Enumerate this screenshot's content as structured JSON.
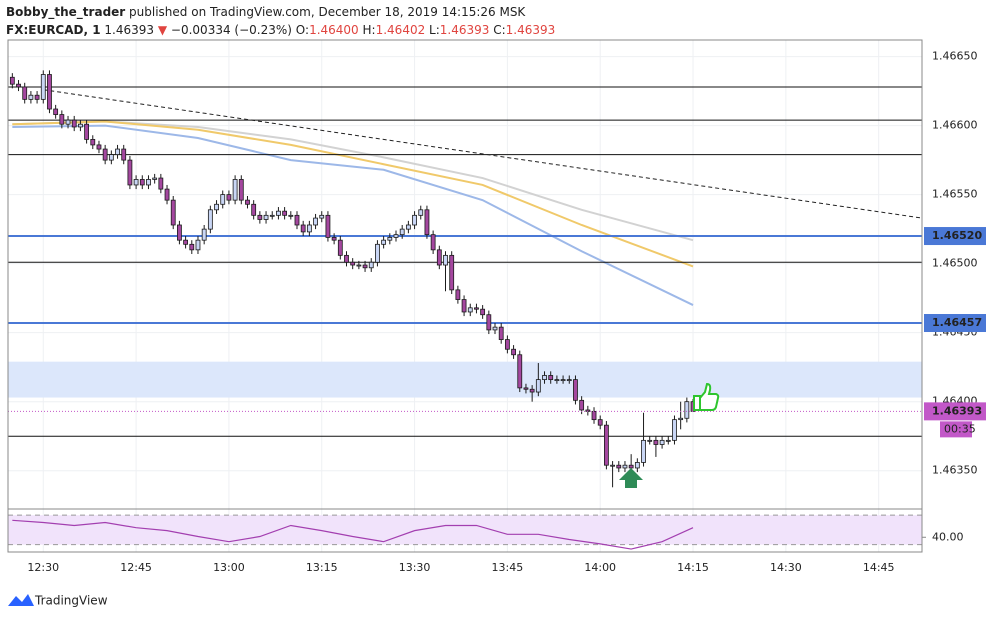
{
  "header": {
    "author": "Bobby_the_trader",
    "published": "published on TradingView.com, December 18, 2019 14:15:26 MSK",
    "symbol": "FX:EURCAD, 1",
    "last": "1.46393",
    "arrow": "▼",
    "change": "−0.00334 (−0.23%)",
    "o_label": "O:",
    "o": "1.46400",
    "h_label": "H:",
    "h": "1.46402",
    "l_label": "L:",
    "l": "1.46393",
    "c_label": "C:",
    "c": "1.46393"
  },
  "footer": {
    "brand": "TradingView"
  },
  "chart_data": {
    "type": "candlestick",
    "up_color": "#c9d6f5",
    "down_color": "#a4479f",
    "outline": "#1b1b1b",
    "grid": true,
    "xlim": [
      744.3,
      892
    ],
    "ylim": [
      1.46323,
      1.46662
    ],
    "xticks": [
      {
        "value": 750,
        "label": "12:30"
      },
      {
        "value": 765,
        "label": "12:45"
      },
      {
        "value": 780,
        "label": "13:00"
      },
      {
        "value": 795,
        "label": "13:15"
      },
      {
        "value": 810,
        "label": "13:30"
      },
      {
        "value": 825,
        "label": "13:45"
      },
      {
        "value": 840,
        "label": "14:00"
      },
      {
        "value": 855,
        "label": "14:15"
      },
      {
        "value": 870,
        "label": "14:30"
      },
      {
        "value": 885,
        "label": "14:45"
      }
    ],
    "yticks": [
      {
        "value": 1.4665,
        "label": "1.46650"
      },
      {
        "value": 1.466,
        "label": "1.46600"
      },
      {
        "value": 1.4655,
        "label": "1.46550"
      },
      {
        "value": 1.465,
        "label": "1.46500"
      },
      {
        "value": 1.4645,
        "label": "1.46450"
      },
      {
        "value": 1.464,
        "label": "1.46400"
      },
      {
        "value": 1.4635,
        "label": "1.46350"
      }
    ],
    "x": [
      745,
      746,
      747,
      748,
      749,
      750,
      751,
      752,
      753,
      754,
      755,
      756,
      757,
      758,
      759,
      760,
      761,
      762,
      763,
      764,
      765,
      766,
      767,
      768,
      769,
      770,
      771,
      772,
      773,
      774,
      775,
      776,
      777,
      778,
      779,
      780,
      781,
      782,
      783,
      784,
      785,
      786,
      787,
      788,
      789,
      790,
      791,
      792,
      793,
      794,
      795,
      796,
      797,
      798,
      799,
      800,
      801,
      802,
      803,
      804,
      805,
      806,
      807,
      808,
      809,
      810,
      811,
      812,
      813,
      814,
      815,
      816,
      817,
      818,
      819,
      820,
      821,
      822,
      823,
      824,
      825,
      826,
      827,
      828,
      829,
      830,
      831,
      832,
      833,
      834,
      835,
      836,
      837,
      838,
      839,
      840,
      841,
      842,
      843,
      844,
      845,
      846,
      847,
      848,
      849,
      850,
      851,
      852,
      853,
      854,
      855
    ],
    "candles": [
      [
        1.46635,
        1.46638,
        1.46627,
        1.4663
      ],
      [
        1.4663,
        1.46633,
        1.46625,
        1.46628
      ],
      [
        1.46628,
        1.46631,
        1.46616,
        1.46619
      ],
      [
        1.46619,
        1.46625,
        1.46616,
        1.46622
      ],
      [
        1.46622,
        1.46625,
        1.46616,
        1.46619
      ],
      [
        1.46619,
        1.4664,
        1.46616,
        1.46637
      ],
      [
        1.46637,
        1.4664,
        1.46609,
        1.46612
      ],
      [
        1.46612,
        1.46615,
        1.46605,
        1.46608
      ],
      [
        1.46608,
        1.46611,
        1.46598,
        1.46601
      ],
      [
        1.46601,
        1.46607,
        1.46598,
        1.46604
      ],
      [
        1.46604,
        1.46607,
        1.46596,
        1.46599
      ],
      [
        1.46599,
        1.46604,
        1.46596,
        1.46601
      ],
      [
        1.46601,
        1.46604,
        1.46587,
        1.4659
      ],
      [
        1.4659,
        1.46593,
        1.46583,
        1.46586
      ],
      [
        1.46586,
        1.46589,
        1.4658,
        1.46583
      ],
      [
        1.46583,
        1.46586,
        1.46572,
        1.46575
      ],
      [
        1.46575,
        1.46582,
        1.46572,
        1.46579
      ],
      [
        1.46579,
        1.46586,
        1.46576,
        1.46583
      ],
      [
        1.46583,
        1.46586,
        1.46572,
        1.46575
      ],
      [
        1.46575,
        1.46578,
        1.46554,
        1.46557
      ],
      [
        1.46557,
        1.46564,
        1.46554,
        1.46561
      ],
      [
        1.46561,
        1.46564,
        1.46554,
        1.46557
      ],
      [
        1.46557,
        1.46564,
        1.46554,
        1.46561
      ],
      [
        1.46561,
        1.46565,
        1.46558,
        1.46562
      ],
      [
        1.46562,
        1.46565,
        1.46551,
        1.46554
      ],
      [
        1.46554,
        1.46557,
        1.46543,
        1.46546
      ],
      [
        1.46546,
        1.46549,
        1.46525,
        1.46528
      ],
      [
        1.46528,
        1.46531,
        1.46514,
        1.46517
      ],
      [
        1.46517,
        1.4652,
        1.46511,
        1.46514
      ],
      [
        1.46514,
        1.46517,
        1.46507,
        1.4651
      ],
      [
        1.4651,
        1.4652,
        1.46507,
        1.46517
      ],
      [
        1.46517,
        1.46528,
        1.46514,
        1.46525
      ],
      [
        1.46525,
        1.46542,
        1.46522,
        1.46539
      ],
      [
        1.46539,
        1.46546,
        1.46536,
        1.46543
      ],
      [
        1.46543,
        1.46553,
        1.4654,
        1.4655
      ],
      [
        1.4655,
        1.46553,
        1.46543,
        1.46546
      ],
      [
        1.46546,
        1.46564,
        1.46543,
        1.46561
      ],
      [
        1.46561,
        1.46564,
        1.46543,
        1.46546
      ],
      [
        1.46546,
        1.46549,
        1.4654,
        1.46543
      ],
      [
        1.46543,
        1.46546,
        1.46532,
        1.46535
      ],
      [
        1.46535,
        1.46538,
        1.46529,
        1.46532
      ],
      [
        1.46532,
        1.46538,
        1.46529,
        1.46535
      ],
      [
        1.46535,
        1.46538,
        1.46532,
        1.46535
      ],
      [
        1.46535,
        1.46541,
        1.46532,
        1.46538
      ],
      [
        1.46538,
        1.46541,
        1.46532,
        1.46535
      ],
      [
        1.46535,
        1.46538,
        1.46532,
        1.46535
      ],
      [
        1.46535,
        1.46538,
        1.46525,
        1.46528
      ],
      [
        1.46528,
        1.46531,
        1.4652,
        1.46523
      ],
      [
        1.46523,
        1.46531,
        1.4652,
        1.46528
      ],
      [
        1.46528,
        1.46536,
        1.46525,
        1.46533
      ],
      [
        1.46533,
        1.46538,
        1.4653,
        1.46535
      ],
      [
        1.46535,
        1.46538,
        1.46516,
        1.46519
      ],
      [
        1.46519,
        1.46522,
        1.46514,
        1.46517
      ],
      [
        1.46517,
        1.4652,
        1.46503,
        1.46506
      ],
      [
        1.46506,
        1.46509,
        1.46498,
        1.46501
      ],
      [
        1.46501,
        1.46504,
        1.46496,
        1.46499
      ],
      [
        1.46499,
        1.46502,
        1.46496,
        1.46499
      ],
      [
        1.46499,
        1.46502,
        1.46494,
        1.46497
      ],
      [
        1.46497,
        1.46504,
        1.46494,
        1.46501
      ],
      [
        1.46501,
        1.46517,
        1.46498,
        1.46514
      ],
      [
        1.46514,
        1.4652,
        1.46511,
        1.46517
      ],
      [
        1.46517,
        1.46522,
        1.46514,
        1.46519
      ],
      [
        1.46519,
        1.46524,
        1.46516,
        1.46521
      ],
      [
        1.46521,
        1.46528,
        1.46518,
        1.46525
      ],
      [
        1.46525,
        1.46531,
        1.46522,
        1.46528
      ],
      [
        1.46528,
        1.46538,
        1.46525,
        1.46535
      ],
      [
        1.46535,
        1.46542,
        1.46532,
        1.46539
      ],
      [
        1.46539,
        1.46542,
        1.46518,
        1.46521
      ],
      [
        1.46521,
        1.46524,
        1.46507,
        1.4651
      ],
      [
        1.4651,
        1.46513,
        1.46496,
        1.46499
      ],
      [
        1.46499,
        1.46509,
        1.4648,
        1.46506
      ],
      [
        1.46506,
        1.46509,
        1.46478,
        1.46481
      ],
      [
        1.46481,
        1.46484,
        1.46471,
        1.46474
      ],
      [
        1.46474,
        1.46477,
        1.46462,
        1.46465
      ],
      [
        1.46465,
        1.46471,
        1.46462,
        1.46468
      ],
      [
        1.46468,
        1.46471,
        1.46464,
        1.46467
      ],
      [
        1.46467,
        1.4647,
        1.4646,
        1.46463
      ],
      [
        1.46463,
        1.46466,
        1.46449,
        1.46452
      ],
      [
        1.46452,
        1.46457,
        1.46449,
        1.46454
      ],
      [
        1.46454,
        1.46457,
        1.46442,
        1.46445
      ],
      [
        1.46445,
        1.46448,
        1.46435,
        1.46438
      ],
      [
        1.46438,
        1.46441,
        1.46431,
        1.46434
      ],
      [
        1.46434,
        1.46437,
        1.46407,
        1.4641
      ],
      [
        1.4641,
        1.46413,
        1.46406,
        1.46409
      ],
      [
        1.46409,
        1.46412,
        1.464,
        1.46407
      ],
      [
        1.46407,
        1.46428,
        1.46404,
        1.46416
      ],
      [
        1.46416,
        1.46422,
        1.46413,
        1.46419
      ],
      [
        1.46419,
        1.46422,
        1.46413,
        1.46416
      ],
      [
        1.46416,
        1.46419,
        1.46413,
        1.46416
      ],
      [
        1.46416,
        1.46419,
        1.46413,
        1.46416
      ],
      [
        1.46416,
        1.46419,
        1.46413,
        1.46416
      ],
      [
        1.46416,
        1.46419,
        1.46398,
        1.46401
      ],
      [
        1.46401,
        1.46404,
        1.46391,
        1.46394
      ],
      [
        1.46394,
        1.46397,
        1.4639,
        1.46393
      ],
      [
        1.46393,
        1.46396,
        1.46384,
        1.46387
      ],
      [
        1.46387,
        1.4639,
        1.4638,
        1.46383
      ],
      [
        1.46383,
        1.46386,
        1.46351,
        1.46354
      ],
      [
        1.46354,
        1.46357,
        1.46338,
        1.46354
      ],
      [
        1.46354,
        1.46357,
        1.46349,
        1.46352
      ],
      [
        1.46352,
        1.46357,
        1.46349,
        1.46354
      ],
      [
        1.46354,
        1.46362,
        1.46342,
        1.46352
      ],
      [
        1.46352,
        1.46359,
        1.46349,
        1.46356
      ],
      [
        1.46356,
        1.46392,
        1.46353,
        1.46372
      ],
      [
        1.46372,
        1.46375,
        1.46369,
        1.46372
      ],
      [
        1.46372,
        1.46375,
        1.4636,
        1.46369
      ],
      [
        1.46369,
        1.46375,
        1.46366,
        1.46372
      ],
      [
        1.46372,
        1.46375,
        1.46369,
        1.46372
      ],
      [
        1.46372,
        1.4639,
        1.46369,
        1.46387
      ],
      [
        1.46387,
        1.464,
        1.4638,
        1.46388
      ],
      [
        1.46388,
        1.46403,
        1.46385,
        1.464
      ],
      [
        1.464,
        1.46402,
        1.46393,
        1.46393
      ]
    ],
    "levels": [
      {
        "value": 1.46628,
        "color": "#111111"
      },
      {
        "value": 1.46604,
        "color": "#111111"
      },
      {
        "value": 1.46579,
        "color": "#111111"
      },
      {
        "value": 1.46501,
        "color": "#111111"
      },
      {
        "value": 1.46375,
        "color": "#111111"
      },
      {
        "value": 1.4652,
        "label": "1.46520",
        "color": "#4a78d6"
      },
      {
        "value": 1.46457,
        "color": "#4a78d6"
      }
    ],
    "zone": {
      "values": [
        1.46403,
        1.46429
      ],
      "color": "#dce7fb"
    },
    "trendline": {
      "x": [
        750,
        892
      ],
      "values": [
        1.46626,
        1.46533
      ],
      "color": "#222222"
    },
    "moving_averages": [
      {
        "color": "#d2d2d2",
        "x": [
          745,
          760,
          775,
          790,
          805,
          821,
          837,
          855
        ],
        "values": [
          1.46601,
          1.46603,
          1.46599,
          1.4659,
          1.46577,
          1.46562,
          1.46539,
          1.46517
        ]
      },
      {
        "color": "#f0c96a",
        "x": [
          745,
          760,
          775,
          790,
          805,
          821,
          837,
          855
        ],
        "values": [
          1.46601,
          1.46603,
          1.46597,
          1.46586,
          1.46572,
          1.46557,
          1.46528,
          1.46498
        ]
      },
      {
        "color": "#9db8e8",
        "x": [
          745,
          760,
          775,
          790,
          805,
          821,
          837,
          855
        ],
        "values": [
          1.46599,
          1.466,
          1.46591,
          1.46575,
          1.46568,
          1.46546,
          1.46509,
          1.4647
        ]
      }
    ],
    "last_color": "#c258c8",
    "countdown": "00:35",
    "rsi": {
      "x": [
        745,
        750,
        755,
        760,
        765,
        770,
        775,
        780,
        785,
        790,
        795,
        800,
        805,
        810,
        815,
        820,
        825,
        830,
        835,
        840,
        845,
        850,
        855
      ],
      "values": [
        63,
        60,
        56,
        60,
        53,
        49,
        41,
        34,
        41,
        56,
        49,
        41,
        34,
        49,
        56,
        56,
        44,
        44,
        37,
        31,
        24,
        34,
        53
      ],
      "ylim": [
        20,
        77
      ],
      "yticks": [
        {
          "value": 40,
          "label": "40.00"
        }
      ],
      "bands": [
        30,
        70
      ],
      "color": "#a33fb0",
      "fill": "#f1e3fb"
    }
  }
}
